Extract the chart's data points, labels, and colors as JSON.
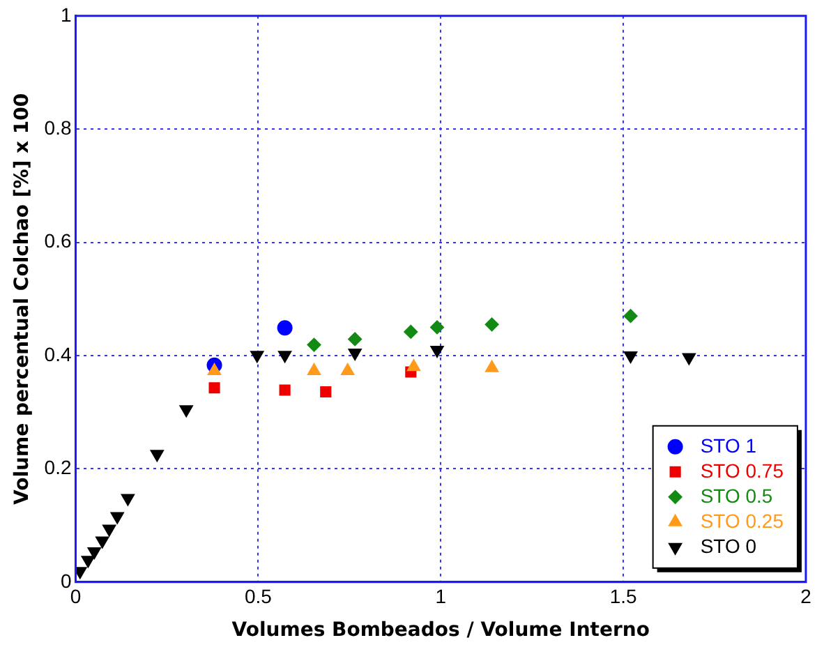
{
  "chart_data": {
    "type": "scatter",
    "xlabel": "Volumes Bombeados / Volume Interno",
    "ylabel": "Volume percentual Colchao [%] x 100",
    "xlim": [
      0,
      2
    ],
    "xticks": [
      0,
      0.5,
      1,
      1.5,
      2
    ],
    "ylim": [
      0,
      1
    ],
    "yticks": [
      0,
      0.2,
      0.4,
      0.6,
      0.8,
      1
    ],
    "grid": true,
    "legend": "bottom right",
    "series": [
      {
        "name": "STO 1",
        "color": "#0000ff",
        "marker": "circle",
        "x": [
          0.38,
          0.573
        ],
        "values": [
          0.383,
          0.449
        ]
      },
      {
        "name": "STO 0.75",
        "color": "#ee0000",
        "marker": "square",
        "x": [
          0.38,
          0.573,
          0.685,
          0.918
        ],
        "values": [
          0.343,
          0.339,
          0.336,
          0.371
        ]
      },
      {
        "name": "STO 0.5",
        "color": "#138a13",
        "marker": "diamond",
        "x": [
          0.653,
          0.765,
          0.918,
          0.99,
          1.14,
          1.52
        ],
        "values": [
          0.419,
          0.429,
          0.442,
          0.45,
          0.455,
          0.47
        ]
      },
      {
        "name": "STO 0.25",
        "color": "#ff9a1a",
        "marker": "triangle",
        "x": [
          0.38,
          0.653,
          0.745,
          0.926,
          1.14
        ],
        "values": [
          0.373,
          0.373,
          0.373,
          0.38,
          0.378
        ]
      },
      {
        "name": "STO 0",
        "color": "#000000",
        "marker": "triangle-down",
        "x": [
          0.012,
          0.034,
          0.051,
          0.073,
          0.092,
          0.114,
          0.143,
          0.223,
          0.303,
          0.497,
          0.573,
          0.765,
          0.99,
          1.52,
          1.68
        ],
        "values": [
          0.019,
          0.039,
          0.054,
          0.073,
          0.094,
          0.116,
          0.148,
          0.226,
          0.305,
          0.401,
          0.401,
          0.405,
          0.41,
          0.4,
          0.397
        ]
      }
    ]
  }
}
